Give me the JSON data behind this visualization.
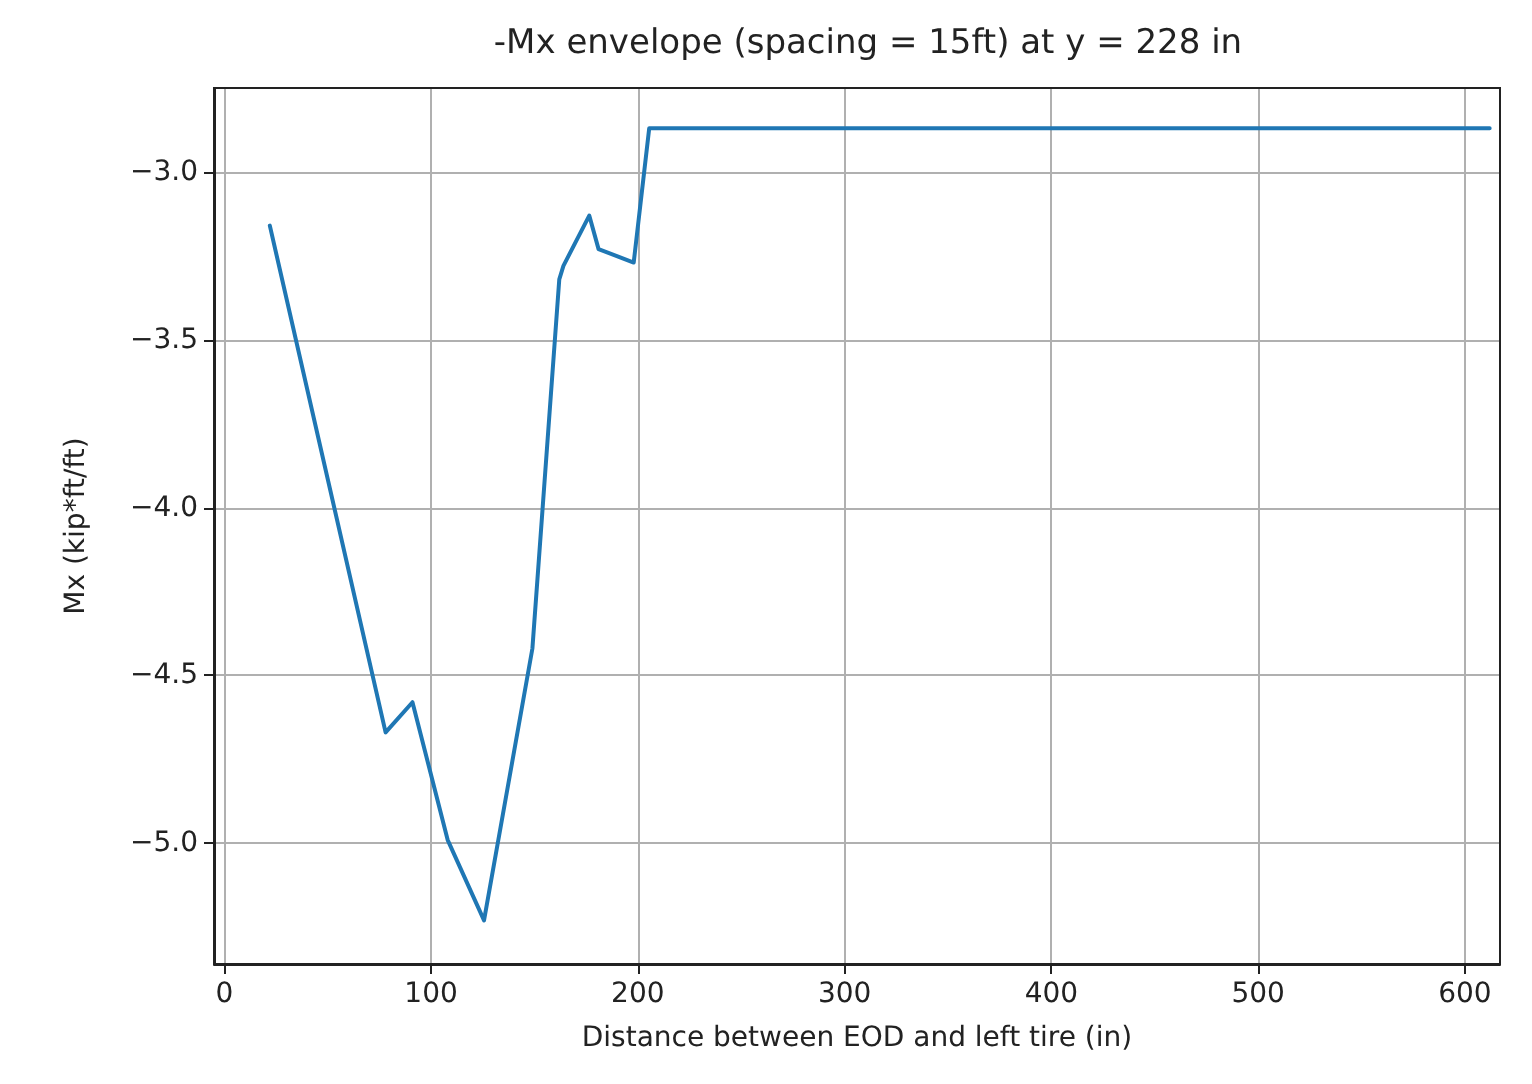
{
  "chart_data": {
    "type": "line",
    "title": "-Mx envelope (spacing = 15ft) at y = 228 in",
    "xlabel": "Distance between EOD and left tire (in)",
    "ylabel": "Mx (kip*ft/ft)",
    "x": [
      22,
      78,
      91,
      108,
      125.6,
      149,
      162,
      164,
      176.5,
      181,
      198,
      205.5,
      612
    ],
    "series": [
      {
        "color": "#1f77b4",
        "values": [
          -3.16,
          -4.67,
          -4.58,
          -4.99,
          -5.23,
          -4.42,
          -3.32,
          -3.28,
          -3.13,
          -3.23,
          -3.27,
          -2.87,
          -2.87
        ]
      }
    ],
    "xlim": [
      -5,
      617
    ],
    "xticks": [
      0,
      100,
      200,
      300,
      400,
      500,
      600
    ],
    "ylim": [
      -5.36,
      -2.75
    ],
    "yticks": [
      {
        "value": -5,
        "label": "−5.0"
      },
      {
        "value": -4.5,
        "label": "−4.5"
      },
      {
        "value": -4,
        "label": "−4.0"
      },
      {
        "value": -3.5,
        "label": "−3.5"
      },
      {
        "value": -3,
        "label": "−3.0"
      }
    ],
    "grid": true,
    "marker": "none",
    "line_style": "solid"
  }
}
